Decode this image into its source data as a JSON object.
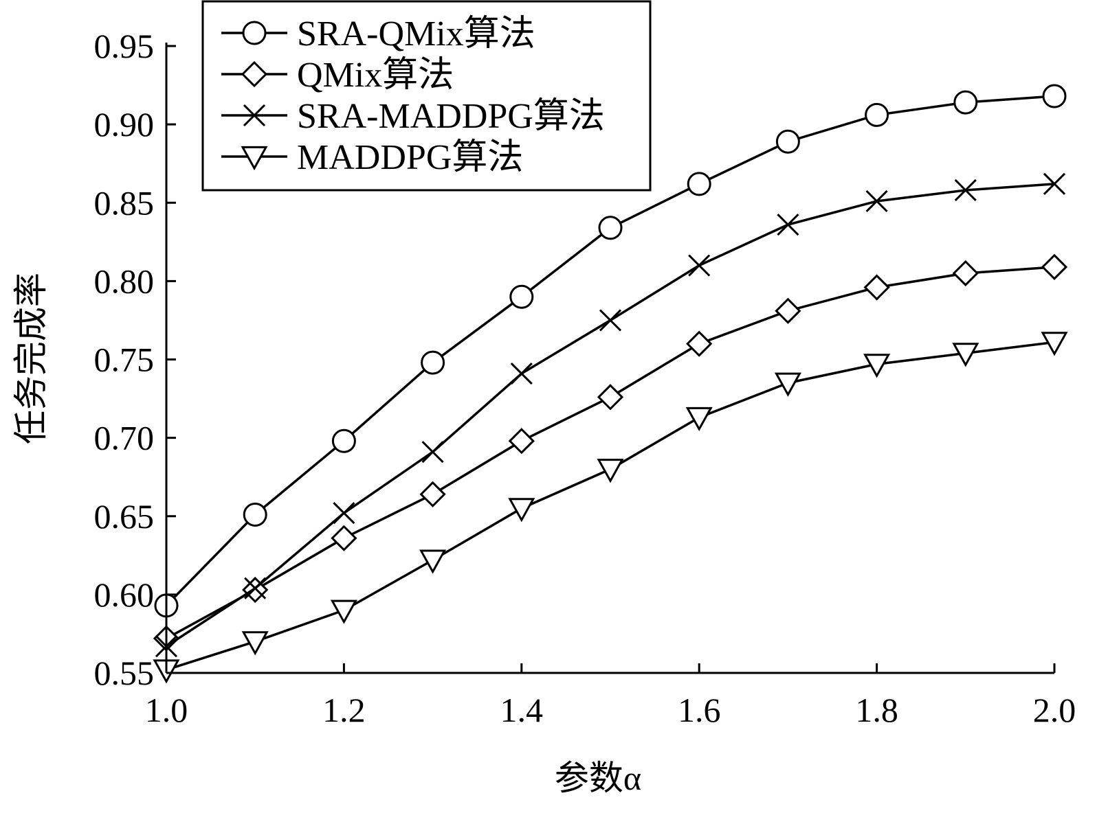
{
  "chart_data": {
    "type": "line",
    "xlabel": "参数α",
    "ylabel": "任务完成率",
    "xlim": [
      1.0,
      2.0
    ],
    "ylim": [
      0.55,
      0.95
    ],
    "x": [
      1.0,
      1.1,
      1.2,
      1.3,
      1.4,
      1.5,
      1.6,
      1.7,
      1.8,
      1.9,
      2.0
    ],
    "x_ticks": [
      1.0,
      1.2,
      1.4,
      1.6,
      1.8,
      2.0
    ],
    "x_tick_labels": [
      "1.0",
      "1.2",
      "1.4",
      "1.6",
      "1.8",
      "2.0"
    ],
    "y_ticks": [
      0.55,
      0.6,
      0.65,
      0.7,
      0.75,
      0.8,
      0.85,
      0.9,
      0.95
    ],
    "y_tick_labels": [
      "0.55",
      "0.60",
      "0.65",
      "0.70",
      "0.75",
      "0.80",
      "0.85",
      "0.90",
      "0.95"
    ],
    "legend_position": "top-left",
    "grid": false,
    "series": [
      {
        "name": "SRA-QMix算法",
        "marker": "circle",
        "values": [
          0.593,
          0.651,
          0.698,
          0.748,
          0.79,
          0.834,
          0.862,
          0.889,
          0.906,
          0.914,
          0.918
        ]
      },
      {
        "name": "QMix算法",
        "marker": "diamond",
        "values": [
          0.572,
          0.603,
          0.636,
          0.664,
          0.698,
          0.726,
          0.76,
          0.781,
          0.796,
          0.805,
          0.809
        ]
      },
      {
        "name": "SRA-MADDPG算法",
        "marker": "x",
        "values": [
          0.567,
          0.604,
          0.652,
          0.691,
          0.741,
          0.775,
          0.81,
          0.836,
          0.851,
          0.858,
          0.862
        ]
      },
      {
        "name": "MADDPG算法",
        "marker": "triangle-down",
        "values": [
          0.552,
          0.57,
          0.59,
          0.622,
          0.655,
          0.68,
          0.713,
          0.735,
          0.747,
          0.754,
          0.761
        ]
      }
    ]
  }
}
